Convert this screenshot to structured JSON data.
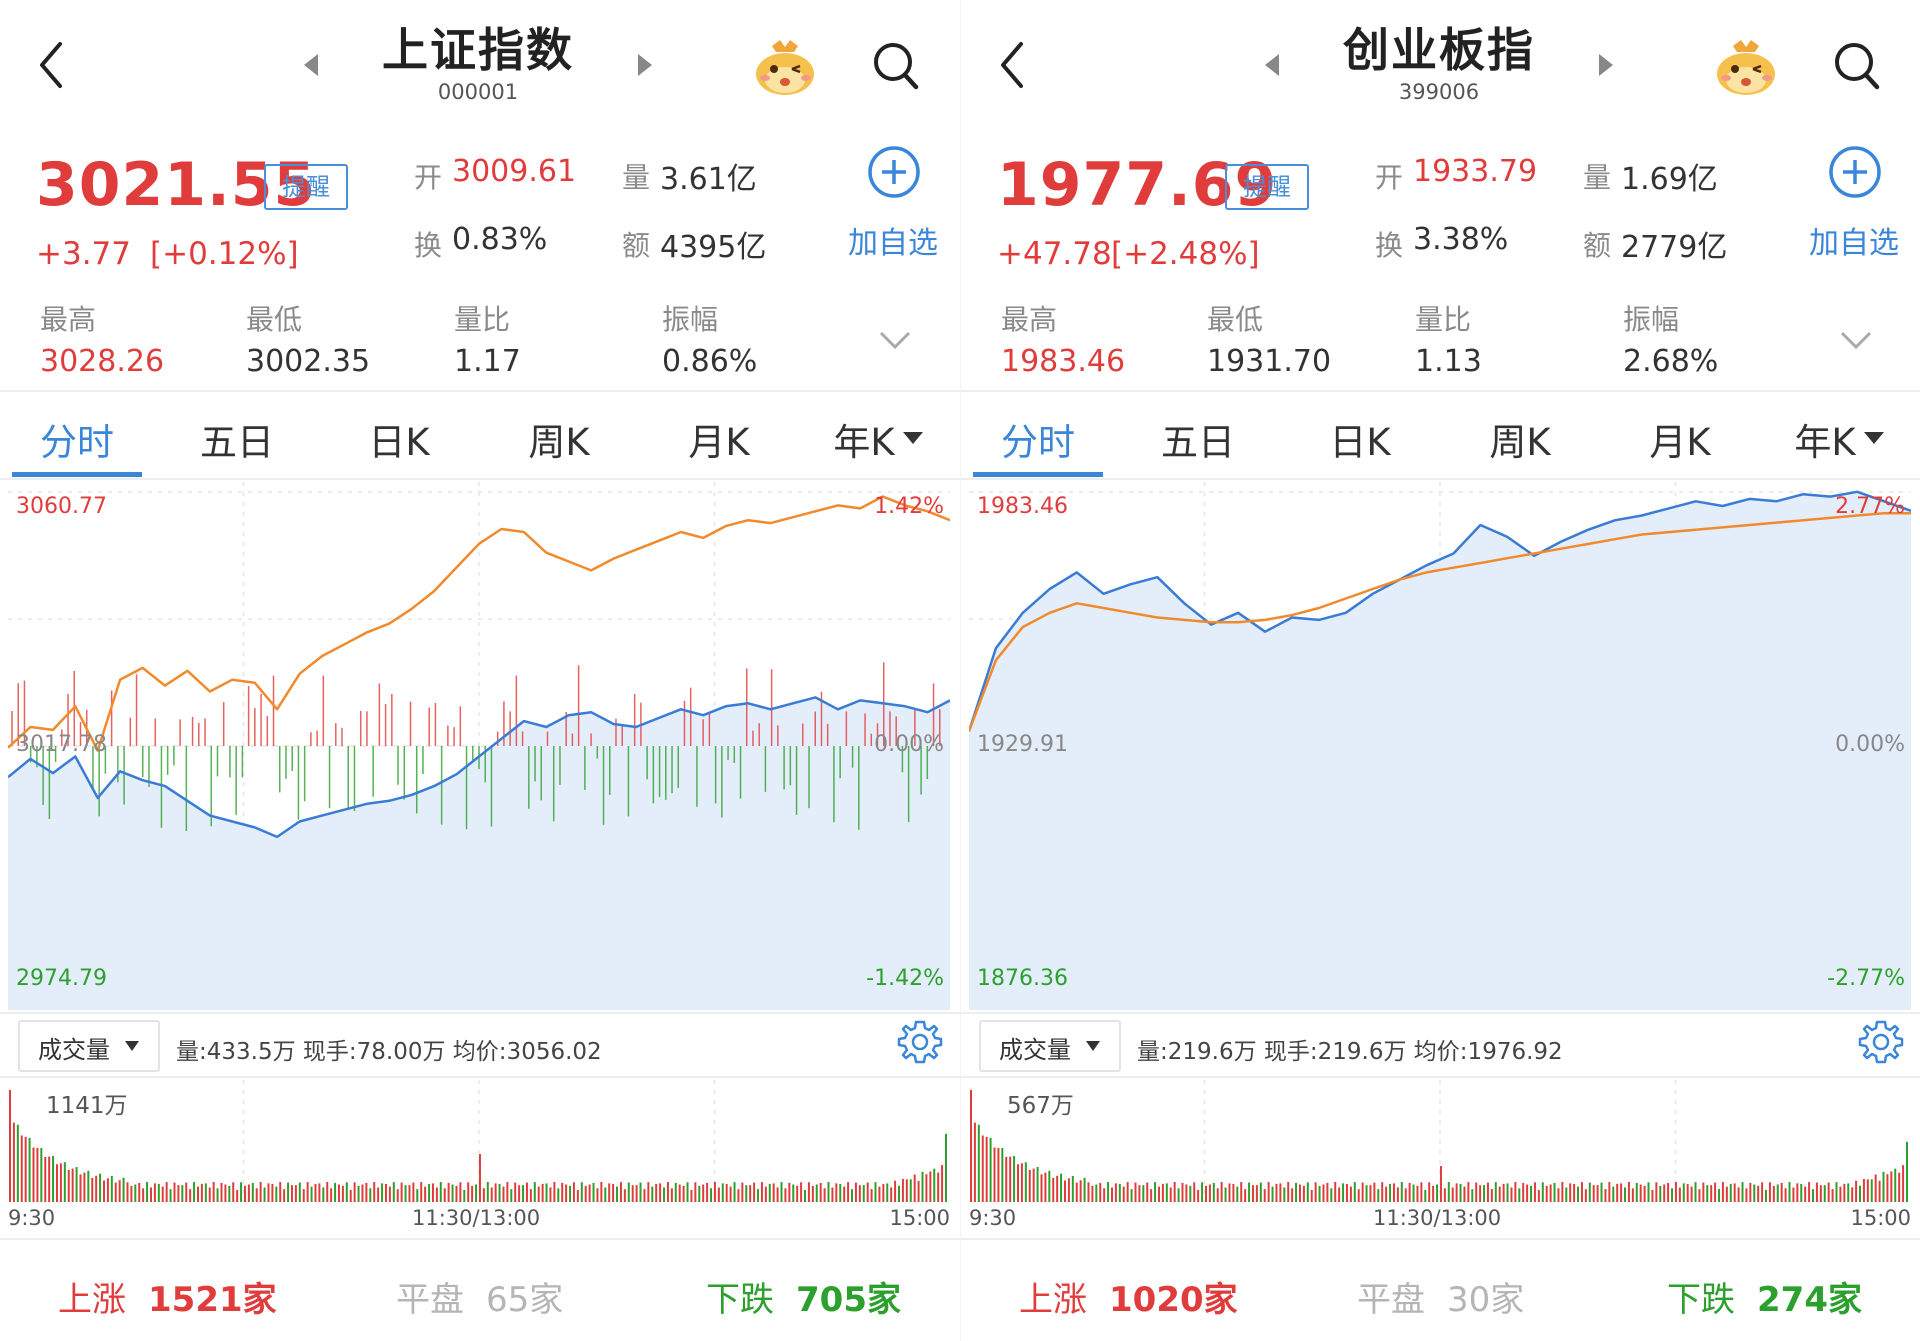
{
  "colors": {
    "up": "#e13c3c",
    "down": "#2ca02c",
    "accent": "#3a86d9",
    "fill": "#e4eefa",
    "price_line": "#3a7bd5",
    "avg_line": "#f08a2c"
  },
  "panels": [
    {
      "name": "上证指数",
      "code": "000001",
      "price": "3021.55",
      "remind": "提醒",
      "change": "+3.77",
      "change_pct": "[+0.12%]",
      "open_label": "开",
      "open": "3009.61",
      "vol_label": "量",
      "vol": "3.61亿",
      "turnover_label": "换",
      "turnover": "0.83%",
      "amount_label": "额",
      "amount": "4395亿",
      "add_label": "加自选",
      "high_label": "最高",
      "high": "3028.26",
      "low_label": "最低",
      "low": "3002.35",
      "ratio_label": "量比",
      "ratio": "1.17",
      "amp_label": "振幅",
      "amp": "0.86%",
      "tabs": [
        "分时",
        "五日",
        "日K",
        "周K",
        "月K",
        "年K"
      ],
      "chart": {
        "top_price": "3060.77",
        "top_pct": "1.42%",
        "mid_price": "3017.78",
        "mid_pct": "0.00%",
        "bot_price": "2974.79",
        "bot_pct": "-1.42%"
      },
      "vol_select": "成交量",
      "vol_info": "量:433.5万  现手:78.00万  均价:3056.02",
      "vol_max": "1141万",
      "time": {
        "start": "9:30",
        "mid": "11:30/13:00",
        "end": "15:00"
      },
      "stats": {
        "up_label": "上涨",
        "up": "1521家",
        "flat_label": "平盘",
        "flat": "65家",
        "down_label": "下跌",
        "down": "705家"
      }
    },
    {
      "name": "创业板指",
      "code": "399006",
      "price": "1977.69",
      "remind": "提醒",
      "change": "+47.78",
      "change_pct": "[+2.48%]",
      "open_label": "开",
      "open": "1933.79",
      "vol_label": "量",
      "vol": "1.69亿",
      "turnover_label": "换",
      "turnover": "3.38%",
      "amount_label": "额",
      "amount": "2779亿",
      "add_label": "加自选",
      "high_label": "最高",
      "high": "1983.46",
      "low_label": "最低",
      "low": "1931.70",
      "ratio_label": "量比",
      "ratio": "1.13",
      "amp_label": "振幅",
      "amp": "2.68%",
      "tabs": [
        "分时",
        "五日",
        "日K",
        "周K",
        "月K",
        "年K"
      ],
      "chart": {
        "top_price": "1983.46",
        "top_pct": "2.77%",
        "mid_price": "1929.91",
        "mid_pct": "0.00%",
        "bot_price": "1876.36",
        "bot_pct": "-2.77%"
      },
      "vol_select": "成交量",
      "vol_info": "量:219.6万  现手:219.6万  均价:1976.92",
      "vol_max": "567万",
      "time": {
        "start": "9:30",
        "mid": "11:30/13:00",
        "end": "15:00"
      },
      "stats": {
        "up_label": "上涨",
        "up": "1020家",
        "flat_label": "平盘",
        "flat": "30家",
        "down_label": "下跌",
        "down": "274家"
      }
    }
  ],
  "chart_data": [
    {
      "type": "line",
      "title": "上证指数",
      "x_range": [
        "9:30",
        "15:00"
      ],
      "ylim": [
        2974.79,
        3060.77
      ],
      "series": [
        {
          "values": [
            3012.5,
            3015.6,
            3013.2,
            3016.0,
            3009.0,
            3013.5,
            3012.0,
            3011.0,
            3008.5,
            3006.0,
            3005.0,
            3004.0,
            3002.4,
            3005.0,
            3006.0,
            3007.0,
            3008.0,
            3008.5,
            3009.5,
            3011.0,
            3013.0,
            3016.0,
            3019.0,
            3022.0,
            3021.0,
            3023.0,
            3023.5,
            3021.5,
            3021.0,
            3022.5,
            3024.0,
            3023.0,
            3024.5,
            3025.0,
            3024.0,
            3025.0,
            3026.0,
            3024.0,
            3025.5,
            3025.0,
            3024.5,
            3023.5,
            3025.5
          ]
        },
        {
          "values": [
            3017.5,
            3021.0,
            3020.5,
            3024.5,
            3017.0,
            3029.0,
            3031.0,
            3028.0,
            3030.5,
            3027.0,
            3029.0,
            3028.5,
            3024.0,
            3030.0,
            3033.0,
            3035.0,
            3037.0,
            3038.5,
            3041.0,
            3044.0,
            3048.0,
            3052.0,
            3054.5,
            3054.0,
            3050.5,
            3049.0,
            3047.5,
            3049.5,
            3051.0,
            3052.5,
            3054.0,
            3053.0,
            3055.0,
            3056.0,
            3055.5,
            3056.5,
            3057.5,
            3058.5,
            3058.0,
            3060.0,
            3058.5,
            3057.5,
            3056.0
          ]
        }
      ]
    },
    {
      "type": "line",
      "title": "创业板指",
      "x_range": [
        "9:30",
        "15:00"
      ],
      "ylim": [
        1876.36,
        1983.46
      ],
      "series": [
        {
          "values": [
            1933.0,
            1950.5,
            1958.0,
            1963.0,
            1966.5,
            1962.0,
            1964.0,
            1965.5,
            1960.0,
            1955.5,
            1958.0,
            1954.0,
            1957.0,
            1956.5,
            1958.0,
            1962.0,
            1965.0,
            1968.0,
            1970.5,
            1976.5,
            1974.0,
            1970.0,
            1973.0,
            1975.5,
            1977.5,
            1978.5,
            1980.0,
            1981.5,
            1980.5,
            1982.0,
            1981.5,
            1983.0,
            1982.5,
            1983.5,
            1981.5,
            1979.5
          ]
        },
        {
          "values": [
            1933.0,
            1948.0,
            1955.0,
            1958.0,
            1960.0,
            1959.0,
            1958.0,
            1957.0,
            1956.5,
            1956.0,
            1956.0,
            1956.5,
            1957.5,
            1959.0,
            1961.0,
            1963.0,
            1965.0,
            1966.5,
            1967.5,
            1968.5,
            1969.5,
            1970.5,
            1971.5,
            1972.5,
            1973.5,
            1974.5,
            1975.0,
            1975.5,
            1976.0,
            1976.5,
            1977.0,
            1977.5,
            1978.0,
            1978.5,
            1979.0,
            1979.0
          ]
        }
      ]
    }
  ]
}
